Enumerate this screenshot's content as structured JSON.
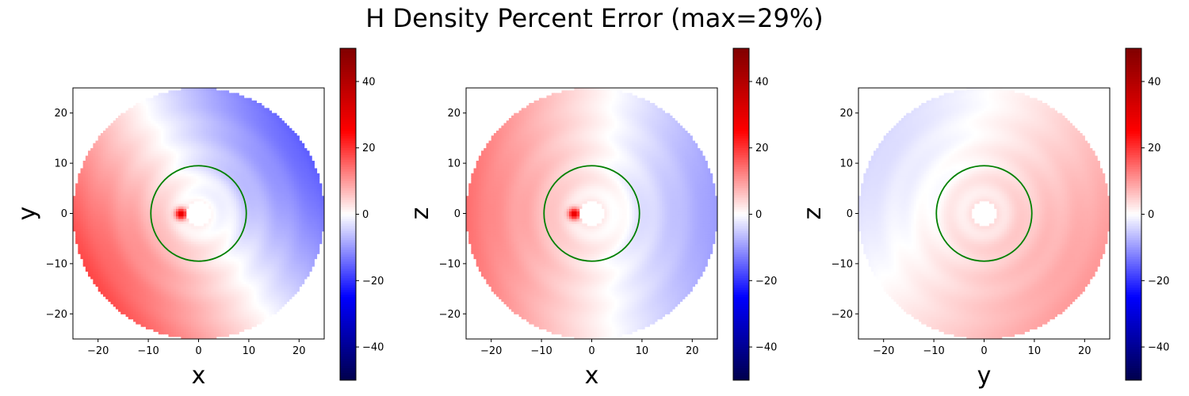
{
  "title": "H Density Percent Error (max=29%)",
  "chart_data": [
    {
      "type": "heatmap",
      "xlabel": "x",
      "ylabel": "y",
      "xlim": [
        -25,
        25
      ],
      "ylim": [
        -25,
        25
      ],
      "xticks": [
        -20,
        -10,
        0,
        10,
        20
      ],
      "yticks": [
        -20,
        -10,
        0,
        10,
        20
      ],
      "colormap": "seismic",
      "clim": [
        -50,
        50
      ],
      "colorbar_ticks": [
        -40,
        -20,
        0,
        20,
        40
      ],
      "domain_radius_outer": 25,
      "domain_radius_inner": 2.5,
      "circle": {
        "center": [
          0,
          0
        ],
        "radius": 9.5,
        "color": "#008000"
      },
      "error_field": {
        "dipole_amplitude": 17,
        "dipole_direction_deg": 210,
        "inner_hotspot": {
          "x": -3.5,
          "y": 0,
          "value": 30
        },
        "background_offset": 1
      }
    },
    {
      "type": "heatmap",
      "xlabel": "x",
      "ylabel": "z",
      "xlim": [
        -25,
        25
      ],
      "ylim": [
        -25,
        25
      ],
      "xticks": [
        -20,
        -10,
        0,
        10,
        20
      ],
      "yticks": [
        -20,
        -10,
        0,
        10,
        20
      ],
      "colormap": "seismic",
      "clim": [
        -50,
        50
      ],
      "colorbar_ticks": [
        -40,
        -20,
        0,
        20,
        40
      ],
      "domain_radius_outer": 25,
      "domain_radius_inner": 2.5,
      "circle": {
        "center": [
          0,
          0
        ],
        "radius": 9.5,
        "color": "#008000"
      },
      "error_field": {
        "dipole_amplitude": 12,
        "dipole_direction_deg": 180,
        "inner_hotspot": {
          "x": -3.5,
          "y": 0,
          "value": 29
        },
        "background_offset": 2
      }
    },
    {
      "type": "heatmap",
      "xlabel": "y",
      "ylabel": "z",
      "xlim": [
        -25,
        25
      ],
      "ylim": [
        -25,
        25
      ],
      "xticks": [
        -20,
        -10,
        0,
        10,
        20
      ],
      "yticks": [
        -20,
        -10,
        0,
        10,
        20
      ],
      "colormap": "seismic",
      "clim": [
        -50,
        50
      ],
      "colorbar_ticks": [
        -40,
        -20,
        0,
        20,
        40
      ],
      "domain_radius_outer": 25,
      "domain_radius_inner": 2.5,
      "circle": {
        "center": [
          0,
          0
        ],
        "radius": 9.5,
        "color": "#008000"
      },
      "error_field": {
        "dipole_amplitude": 7,
        "dipole_direction_deg": 330,
        "inner_hotspot": null,
        "background_offset": 3
      }
    }
  ]
}
